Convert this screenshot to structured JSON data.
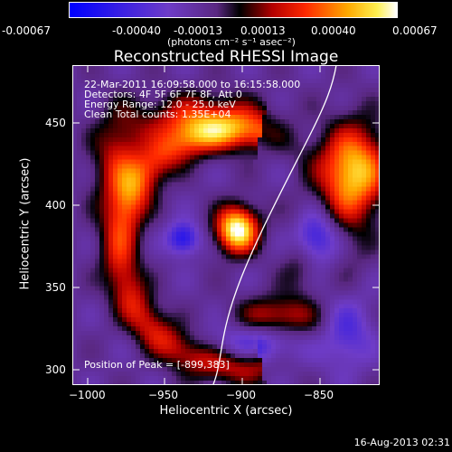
{
  "colorbar": {
    "ticks": [
      "-0.00067",
      "-0.00040",
      "-0.00013",
      "0.00013",
      "0.00040",
      "0.00067"
    ],
    "unit": "(photons cm⁻² s⁻¹ asec⁻²)"
  },
  "title": "Reconstructed RHESSI Image",
  "info": {
    "line1": "22-Mar-2011 16:09:58.000 to 16:15:58.000",
    "line2": "Detectors: 4F 5F 6F 7F 8F, Att 0",
    "line3": "Energy Range: 12.0 - 25.0 keV",
    "line4": "Clean     Total counts: 1.35E+04"
  },
  "peak_text": "Position of Peak = [-899,383]",
  "xaxis": {
    "label": "Heliocentric X (arcsec)",
    "ticks": [
      "−1000",
      "−950",
      "−900",
      "−850"
    ]
  },
  "yaxis": {
    "label": "Heliocentric Y (arcsec)",
    "ticks": [
      "300",
      "350",
      "400",
      "450"
    ]
  },
  "footer": "16-Aug-2013 02:31"
}
